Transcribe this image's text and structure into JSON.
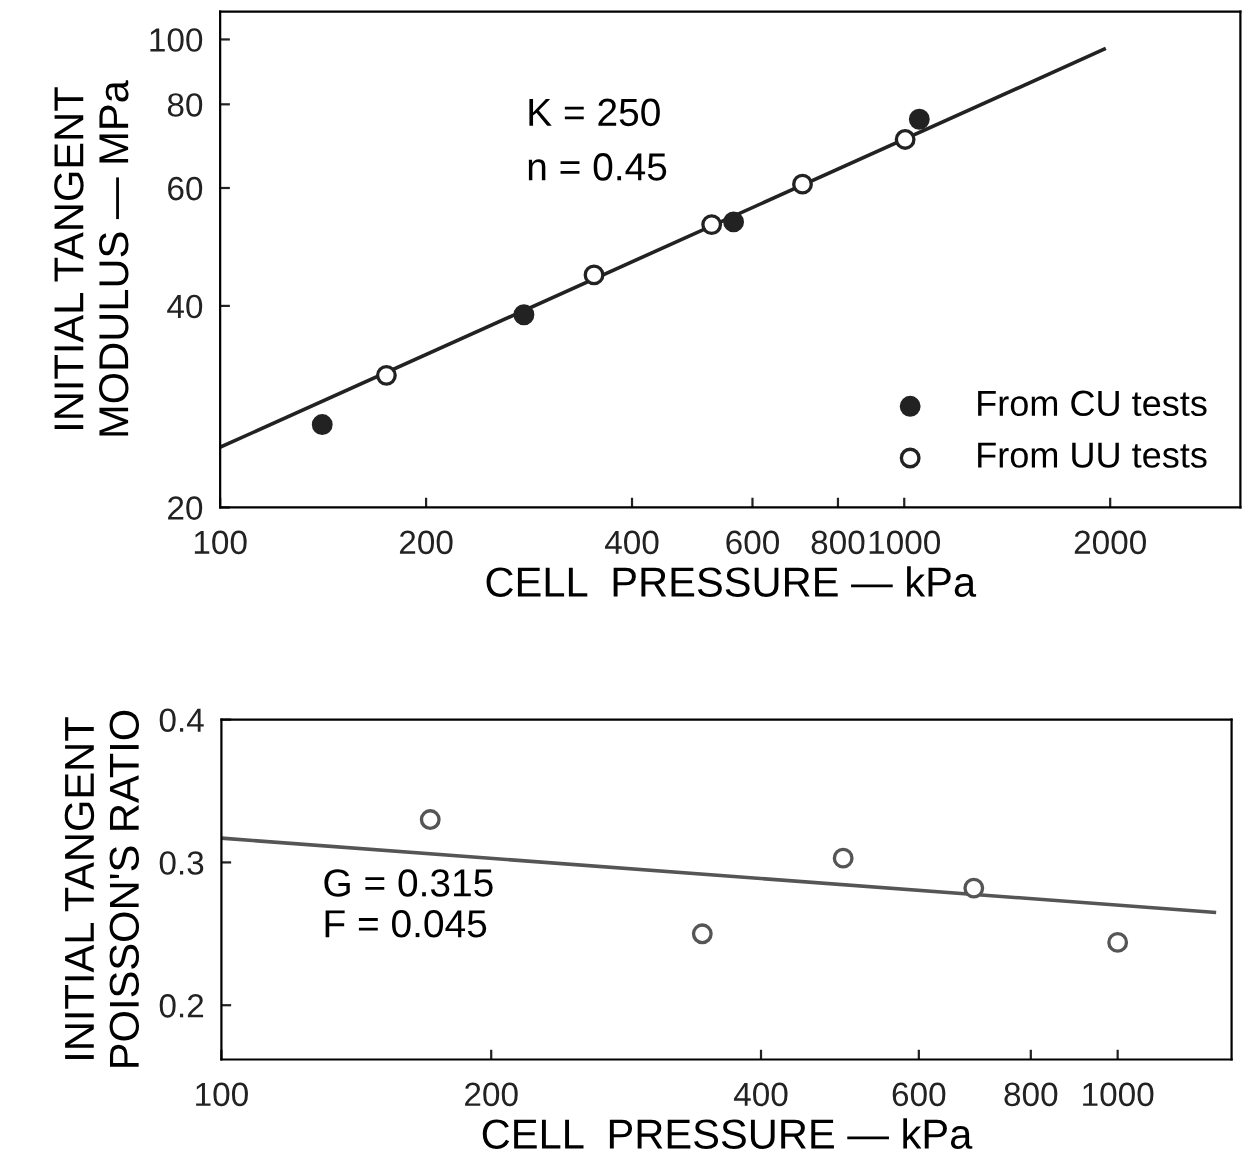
{
  "chart_data": [
    {
      "type": "scatter",
      "xlabel": "CELL  PRESSURE — kPa",
      "ylabel": "INITIAL TANGENT\nMODULUS — MPa",
      "log": "xy",
      "xlim": [
        100,
        3100
      ],
      "ylim": [
        20,
        110
      ],
      "xticks": [
        100,
        200,
        400,
        600,
        800,
        1000,
        2000
      ],
      "yticks": [
        20,
        40,
        60,
        80,
        100
      ],
      "grid": false,
      "legend": "bottom right",
      "annotations": [
        "K = 250",
        "n = 0.45"
      ],
      "series": [
        {
          "name": "From CU tests",
          "marker": "circle",
          "color": "#222222",
          "x": [
            141,
            278,
            563,
            1052
          ],
          "values": [
            26.6,
            38.8,
            53.4,
            76.0
          ]
        },
        {
          "name": "From UU tests",
          "marker": "circle",
          "color": "#222222",
          "x": [
            175,
            352,
            523,
            710,
            1003
          ],
          "values": [
            31.5,
            44.5,
            52.9,
            60.8,
            70.9
          ]
        },
        {
          "type": "line",
          "marker": "none",
          "line_style": "solid",
          "color": "#222222",
          "x": [
            100,
            1960
          ],
          "values": [
            24.6,
            96.7
          ]
        }
      ]
    },
    {
      "type": "scatter",
      "xlabel": "CELL  PRESSURE — kPa",
      "ylabel": "INITIAL TANGENT\nPOISSON'S RATIO",
      "log": "x",
      "xlim": [
        100,
        1340
      ],
      "ylim": [
        0.162,
        0.4
      ],
      "xticks": [
        100,
        200,
        400,
        600,
        800,
        1000
      ],
      "yticks": [
        0.2,
        0.3,
        0.4
      ],
      "grid": false,
      "annotations": [
        "G = 0.315",
        "F = 0.045"
      ],
      "series": [
        {
          "marker": "circle",
          "color": "#555555",
          "x": [
            171,
            344,
            494,
            691,
            1000
          ],
          "values": [
            0.33,
            0.25,
            0.303,
            0.282,
            0.244
          ]
        },
        {
          "type": "line",
          "marker": "none",
          "line_style": "solid",
          "color": "#555555",
          "x": [
            100,
            1282
          ],
          "values": [
            0.317,
            0.265
          ]
        }
      ]
    }
  ]
}
